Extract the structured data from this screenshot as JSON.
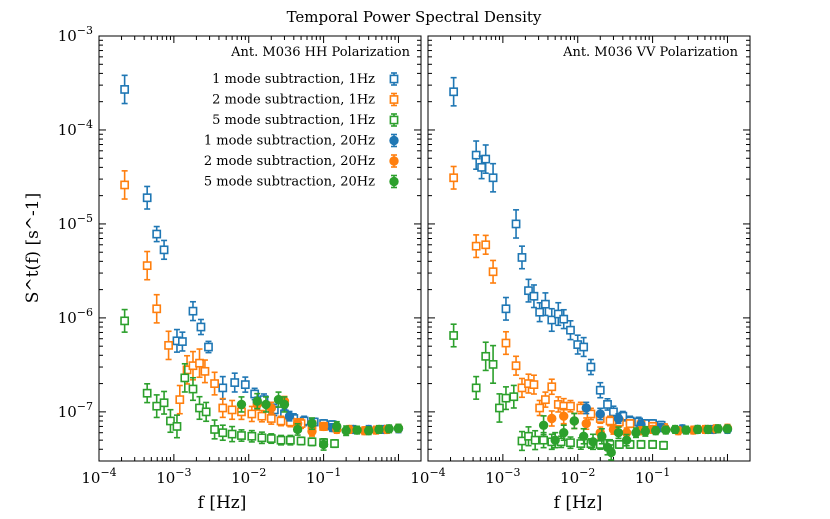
{
  "chart_data": {
    "type": "scatter",
    "title": "Temporal Power Spectral Density",
    "xlabel": "f [Hz]",
    "ylabel": "S^t(f) [s^-1]",
    "xscale": "log",
    "yscale": "log",
    "xlim": [
      0.0001,
      2.0
    ],
    "ylim": [
      3e-08,
      0.001
    ],
    "x_tick_labels": [
      "10^-4",
      "10^-3",
      "10^-2",
      "10^-1"
    ],
    "y_tick_labels": [
      "10^-3",
      "10^-4",
      "10^-5",
      "10^-6",
      "10^-7"
    ],
    "colors": {
      "1mode": "#1f77b4",
      "2mode": "#ff7f0e",
      "5mode": "#2ca02c"
    },
    "panels": [
      {
        "name": "HH",
        "label": "Ant. M036 HH Polarization",
        "legend": [
          "1 mode subtraction, 1Hz",
          "2 mode subtraction, 1Hz",
          "5 mode subtraction, 1Hz",
          "1 mode subtraction, 20Hz",
          "2 mode subtraction, 20Hz",
          "5 mode subtraction, 20Hz"
        ],
        "series": [
          {
            "name": "1 mode subtraction, 1Hz",
            "color": "1mode",
            "marker": "square-open",
            "x": [
              0.00022,
              0.00044,
              0.00059,
              0.00074,
              0.0011,
              0.0013,
              0.0018,
              0.0023,
              0.0029,
              0.0045,
              0.0065,
              0.009,
              0.012,
              0.016,
              0.022,
              0.03,
              0.04,
              0.055,
              0.075,
              0.1,
              0.13
            ],
            "y": [
              0.00027,
              1.9e-05,
              7.8e-06,
              5.3e-06,
              5.7e-07,
              5.6e-07,
              1.18e-06,
              8e-07,
              4.9e-07,
              1.8e-07,
              2.05e-07,
              1.95e-07,
              1.55e-07,
              1.35e-07,
              1.05e-07,
              9.5e-08,
              8.5e-08,
              8e-08,
              7.8e-08,
              7.5e-08,
              7.3e-08
            ],
            "err": [
              0.15,
              0.12,
              0.08,
              0.1,
              0.12,
              0.1,
              0.1,
              0.08,
              0.06,
              0.12,
              0.1,
              0.08,
              0.06,
              0.06,
              0.06,
              0.05,
              0.05,
              0.05,
              0.04,
              0.04,
              0.04
            ]
          },
          {
            "name": "2 mode subtraction, 1Hz",
            "color": "2mode",
            "marker": "square-open",
            "x": [
              0.00022,
              0.00044,
              0.00059,
              0.00085,
              0.0012,
              0.0015,
              0.0018,
              0.0022,
              0.0026,
              0.0035,
              0.0045,
              0.006,
              0.008,
              0.011,
              0.015,
              0.02,
              0.027,
              0.036,
              0.05,
              0.07,
              0.1,
              0.14
            ],
            "y": [
              2.6e-05,
              3.6e-06,
              1.25e-06,
              5.1e-07,
              1.35e-07,
              2.8e-07,
              3.1e-07,
              3.3e-07,
              2.7e-07,
              2e-07,
              1.1e-07,
              1.05e-07,
              1e-07,
              9.5e-08,
              9e-08,
              8.5e-08,
              8e-08,
              7.8e-08,
              7.5e-08,
              7.3e-08,
              7e-08,
              6.8e-08
            ],
            "err": [
              0.15,
              0.15,
              0.15,
              0.15,
              0.15,
              0.15,
              0.15,
              0.15,
              0.12,
              0.12,
              0.1,
              0.1,
              0.08,
              0.08,
              0.06,
              0.06,
              0.05,
              0.05,
              0.05,
              0.04,
              0.04,
              0.04
            ]
          },
          {
            "name": "5 mode subtraction, 1Hz",
            "color": "5mode",
            "marker": "square-open",
            "x": [
              0.00022,
              0.00044,
              0.00059,
              0.00074,
              0.0009,
              0.0011,
              0.0014,
              0.0018,
              0.0022,
              0.0027,
              0.0035,
              0.0045,
              0.006,
              0.008,
              0.011,
              0.015,
              0.02,
              0.027,
              0.036,
              0.05,
              0.07,
              0.1,
              0.14
            ],
            "y": [
              9.3e-07,
              1.58e-07,
              1.15e-07,
              1.25e-07,
              8e-08,
              7e-08,
              2.3e-07,
              1.75e-07,
              1.1e-07,
              1e-07,
              6.5e-08,
              6e-08,
              5.8e-08,
              5.6e-08,
              5.5e-08,
              5.3e-08,
              5.2e-08,
              5e-08,
              5e-08,
              4.9e-08,
              4.8e-08,
              4.7e-08,
              4.6e-08
            ],
            "err": [
              0.12,
              0.1,
              0.12,
              0.12,
              0.12,
              0.12,
              0.15,
              0.12,
              0.12,
              0.1,
              0.1,
              0.08,
              0.08,
              0.06,
              0.06,
              0.06,
              0.05,
              0.05,
              0.05,
              0.04,
              0.04,
              0.04,
              0.04
            ]
          },
          {
            "name": "1 mode subtraction, 20Hz",
            "color": "1mode",
            "marker": "circle-filled",
            "x": [
              0.013,
              0.02,
              0.035,
              0.07,
              0.13,
              0.25,
              0.4,
              0.65,
              1.0
            ],
            "y": [
              1.25e-07,
              1.1e-07,
              9e-08,
              7.5e-08,
              6.8e-08,
              6.5e-08,
              6.5e-08,
              6.5e-08,
              6.6e-08
            ],
            "err": [
              0.06,
              0.06,
              0.05,
              0.05,
              0.04,
              0.04,
              0.04,
              0.04,
              0.04
            ]
          },
          {
            "name": "2 mode subtraction, 20Hz",
            "color": "2mode",
            "marker": "circle-filled",
            "x": [
              0.013,
              0.02,
              0.03,
              0.045,
              0.07,
              0.1,
              0.15,
              0.22,
              0.35,
              0.5,
              0.7,
              1.0
            ],
            "y": [
              1.2e-07,
              1.1e-07,
              1.3e-07,
              7.5e-08,
              6.2e-08,
              7e-08,
              6.5e-08,
              6.5e-08,
              6.3e-08,
              6.4e-08,
              6.5e-08,
              6.7e-08
            ],
            "err": [
              0.06,
              0.06,
              0.05,
              0.05,
              0.05,
              0.04,
              0.04,
              0.04,
              0.04,
              0.04,
              0.04,
              0.04
            ]
          },
          {
            "name": "5 mode subtraction, 20Hz",
            "color": "5mode",
            "marker": "circle-filled",
            "x": [
              0.008,
              0.013,
              0.017,
              0.025,
              0.03,
              0.045,
              0.07,
              0.1,
              0.15,
              0.2,
              0.28,
              0.4,
              0.55,
              0.75,
              1.0
            ],
            "y": [
              1.2e-07,
              1.3e-07,
              1.2e-07,
              1.35e-07,
              1.2e-07,
              6.5e-08,
              7.5e-08,
              4.5e-08,
              7e-08,
              6.3e-08,
              6.4e-08,
              6.3e-08,
              6.5e-08,
              6.6e-08,
              6.7e-08
            ],
            "err": [
              0.08,
              0.08,
              0.08,
              0.08,
              0.08,
              0.06,
              0.06,
              0.06,
              0.05,
              0.05,
              0.04,
              0.04,
              0.04,
              0.04,
              0.04
            ]
          }
        ]
      },
      {
        "name": "VV",
        "label": "Ant. M036 VV Polarization",
        "legend": [],
        "series": [
          {
            "name": "1 mode subtraction, 1Hz",
            "color": "1mode",
            "marker": "square-open",
            "x": [
              0.00022,
              0.00044,
              0.00052,
              0.00059,
              0.00074,
              0.0011,
              0.0015,
              0.0018,
              0.0022,
              0.0026,
              0.0031,
              0.0037,
              0.0045,
              0.0055,
              0.0065,
              0.008,
              0.01,
              0.012,
              0.015,
              0.02,
              0.025,
              0.03,
              0.04,
              0.05,
              0.065,
              0.08,
              0.1,
              0.13
            ],
            "y": [
              0.000255,
              5.4e-05,
              4e-05,
              4.9e-05,
              3.1e-05,
              1.25e-06,
              1e-05,
              4.4e-06,
              1.95e-06,
              1.7e-06,
              1.15e-06,
              1.4e-06,
              9.5e-07,
              1.1e-06,
              9.7e-07,
              7.4e-07,
              5.2e-07,
              4.9e-07,
              3e-07,
              1.7e-07,
              1.2e-07,
              1e-07,
              9e-08,
              8e-08,
              7.8e-08,
              7.5e-08,
              7.5e-08,
              7.2e-08
            ],
            "err": [
              0.15,
              0.15,
              0.12,
              0.15,
              0.15,
              0.12,
              0.15,
              0.12,
              0.12,
              0.12,
              0.1,
              0.12,
              0.12,
              0.12,
              0.1,
              0.1,
              0.1,
              0.1,
              0.08,
              0.08,
              0.06,
              0.06,
              0.05,
              0.05,
              0.05,
              0.04,
              0.04,
              0.04
            ]
          },
          {
            "name": "2 mode subtraction, 1Hz",
            "color": "2mode",
            "marker": "square-open",
            "x": [
              0.00022,
              0.00044,
              0.00059,
              0.00074,
              0.0011,
              0.0015,
              0.0018,
              0.0022,
              0.0026,
              0.0031,
              0.0037,
              0.0045,
              0.0055,
              0.0065,
              0.008,
              0.011,
              0.015,
              0.02,
              0.027,
              0.036,
              0.05,
              0.07,
              0.1,
              0.14
            ],
            "y": [
              3.1e-05,
              5.8e-06,
              6e-06,
              3.1e-06,
              5.4e-07,
              3.1e-07,
              1.8e-07,
              2e-07,
              1.95e-07,
              1.1e-07,
              1.35e-07,
              1.85e-07,
              1.2e-07,
              1.15e-07,
              1.15e-07,
              1.1e-07,
              9.5e-08,
              8.5e-08,
              8e-08,
              7.8e-08,
              7.5e-08,
              7.3e-08,
              7e-08,
              6.8e-08
            ],
            "err": [
              0.12,
              0.12,
              0.1,
              0.12,
              0.12,
              0.1,
              0.1,
              0.1,
              0.1,
              0.08,
              0.08,
              0.08,
              0.08,
              0.08,
              0.06,
              0.06,
              0.06,
              0.05,
              0.05,
              0.05,
              0.04,
              0.04,
              0.04,
              0.04
            ]
          },
          {
            "name": "5 mode subtraction, 1Hz",
            "color": "5mode",
            "marker": "square-open",
            "x": [
              0.00022,
              0.00044,
              0.00059,
              0.00074,
              0.0009,
              0.0011,
              0.0014,
              0.0018,
              0.0022,
              0.0027,
              0.0035,
              0.0045,
              0.006,
              0.008,
              0.011,
              0.015,
              0.02,
              0.027,
              0.036,
              0.05,
              0.07,
              0.1,
              0.14
            ],
            "y": [
              6.5e-07,
              1.8e-07,
              3.9e-07,
              3.2e-07,
              1.1e-07,
              1.4e-07,
              1.45e-07,
              4.9e-08,
              5.5e-08,
              5e-08,
              5e-08,
              4.8e-08,
              4.8e-08,
              4.7e-08,
              4.6e-08,
              4.6e-08,
              4.5e-08,
              4.5e-08,
              4.5e-08,
              4.5e-08,
              4.5e-08,
              4.5e-08,
              4.4e-08
            ],
            "err": [
              0.12,
              0.12,
              0.15,
              0.2,
              0.15,
              0.12,
              0.12,
              0.1,
              0.1,
              0.1,
              0.08,
              0.08,
              0.06,
              0.06,
              0.06,
              0.05,
              0.05,
              0.05,
              0.04,
              0.04,
              0.04,
              0.04,
              0.04
            ]
          },
          {
            "name": "1 mode subtraction, 20Hz",
            "color": "1mode",
            "marker": "circle-filled",
            "x": [
              0.013,
              0.02,
              0.035,
              0.07,
              0.13,
              0.25,
              0.4,
              0.65,
              1.0
            ],
            "y": [
              1.1e-07,
              9.5e-08,
              8.5e-08,
              7.3e-08,
              6.8e-08,
              6.6e-08,
              6.5e-08,
              6.5e-08,
              6.5e-08
            ],
            "err": [
              0.06,
              0.06,
              0.05,
              0.05,
              0.04,
              0.04,
              0.04,
              0.04,
              0.04
            ]
          },
          {
            "name": "2 mode subtraction, 20Hz",
            "color": "2mode",
            "marker": "circle-filled",
            "x": [
              0.0045,
              0.0065,
              0.009,
              0.013,
              0.02,
              0.03,
              0.045,
              0.07,
              0.1,
              0.15,
              0.22,
              0.35,
              0.5,
              0.7,
              1.0
            ],
            "y": [
              8.5e-08,
              9e-08,
              8e-08,
              7.5e-08,
              6e-08,
              6.5e-08,
              6e-08,
              6.3e-08,
              6.5e-08,
              6.5e-08,
              6.3e-08,
              6.4e-08,
              6.5e-08,
              6.6e-08,
              6.7e-08
            ],
            "err": [
              0.08,
              0.08,
              0.08,
              0.06,
              0.06,
              0.05,
              0.05,
              0.04,
              0.04,
              0.04,
              0.04,
              0.04,
              0.04,
              0.04,
              0.04
            ]
          },
          {
            "name": "5 mode subtraction, 20Hz",
            "color": "5mode",
            "marker": "circle-filled",
            "x": [
              0.0035,
              0.005,
              0.0065,
              0.009,
              0.012,
              0.016,
              0.021,
              0.025,
              0.028,
              0.035,
              0.045,
              0.06,
              0.08,
              0.11,
              0.15,
              0.2,
              0.28,
              0.4,
              0.55,
              0.75,
              1.0
            ],
            "y": [
              7.2e-08,
              5e-08,
              6e-08,
              8e-08,
              5.5e-08,
              4.8e-08,
              5.5e-08,
              4.2e-08,
              3.7e-08,
              6e-08,
              5e-08,
              6e-08,
              6.2e-08,
              6.3e-08,
              6.4e-08,
              6.5e-08,
              6.4e-08,
              6.5e-08,
              6.5e-08,
              6.6e-08,
              6.6e-08
            ],
            "err": [
              0.1,
              0.08,
              0.08,
              0.08,
              0.08,
              0.08,
              0.08,
              0.08,
              0.08,
              0.06,
              0.06,
              0.05,
              0.05,
              0.04,
              0.04,
              0.04,
              0.04,
              0.04,
              0.04,
              0.04,
              0.04
            ]
          }
        ]
      }
    ]
  }
}
